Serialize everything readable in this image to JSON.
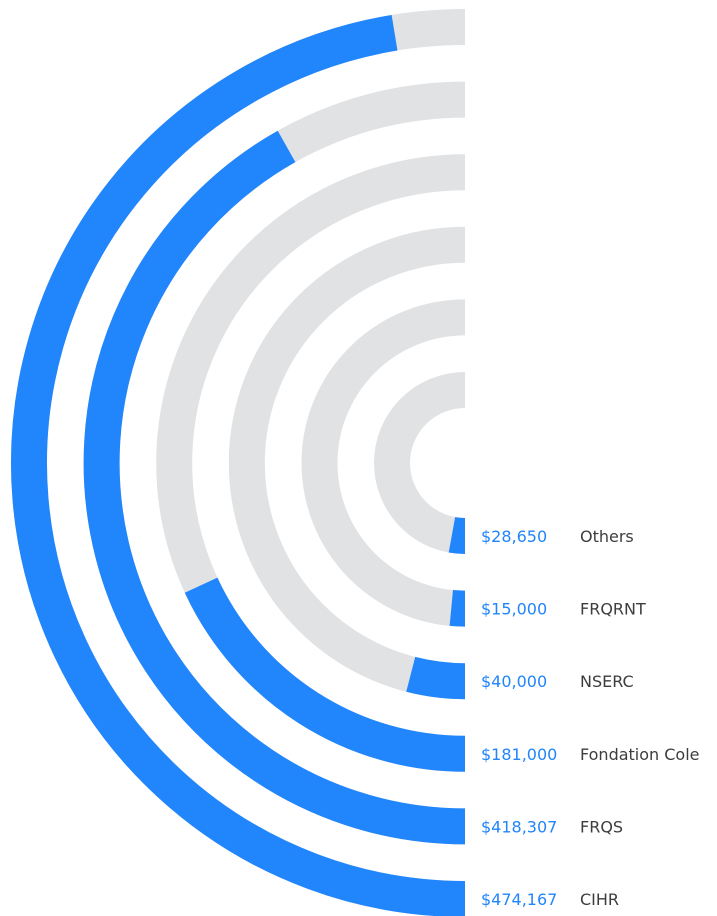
{
  "chart_data": {
    "type": "radial-bar",
    "title": "",
    "max_value": 500000,
    "colors": {
      "fill": "#2185fc",
      "track": "#e1e2e4",
      "value_text": "#2185fc",
      "label_text": "#3d3d3d"
    },
    "series": [
      {
        "label": "CIHR",
        "value": 474167,
        "value_label": "$474,167"
      },
      {
        "label": "FRQS",
        "value": 418307,
        "value_label": "$418,307"
      },
      {
        "label": "Fondation Cole",
        "value": 181000,
        "value_label": "$181,000"
      },
      {
        "label": "NSERC",
        "value": 40000,
        "value_label": "$40,000"
      },
      {
        "label": "FRQRNT",
        "value": 15000,
        "value_label": "$15,000"
      },
      {
        "label": "Others",
        "value": 28650,
        "value_label": "$28,650"
      }
    ]
  }
}
